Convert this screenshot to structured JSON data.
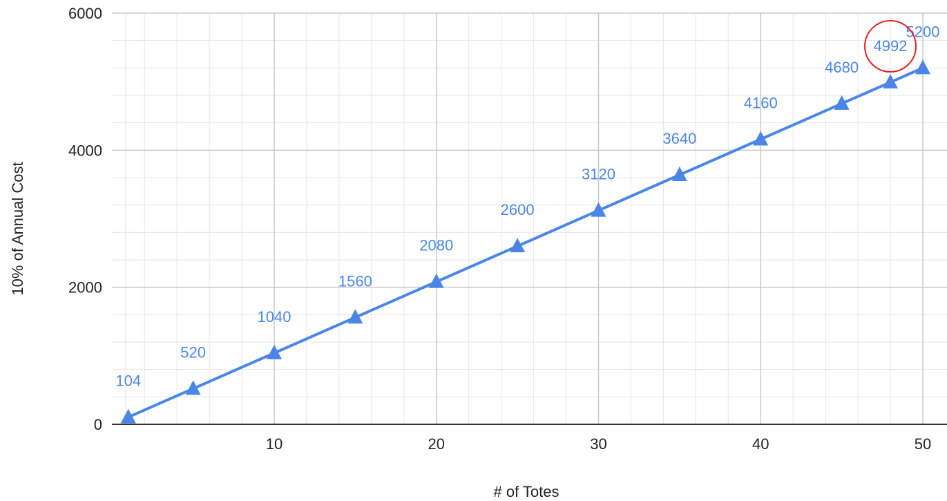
{
  "chart_data": {
    "type": "line",
    "title": "",
    "xlabel": "# of Totes",
    "ylabel": "10% of Annual Cost",
    "xlim": [
      0,
      50
    ],
    "ylim": [
      0,
      6000
    ],
    "x_ticks": [
      "10",
      "20",
      "30",
      "40",
      "50"
    ],
    "y_ticks": [
      "0",
      "2000",
      "4000",
      "6000"
    ],
    "grid": true,
    "legend": "none",
    "marker": "triangle",
    "colors": {
      "series": "#4a86e8",
      "data_label": "#4a86e8",
      "grid_major": "#c8c8c8",
      "grid_minor": "#e6e6e6",
      "axis": "#333333",
      "highlight_circle": "#e02020"
    },
    "x": [
      1,
      5,
      10,
      15,
      20,
      25,
      30,
      35,
      40,
      45,
      48,
      50
    ],
    "series": [
      {
        "values": [
          104,
          520,
          1040,
          1560,
          2080,
          2600,
          3120,
          3640,
          4160,
          4680,
          4992,
          5200
        ],
        "data_labels": [
          "104",
          "520",
          "1040",
          "1560",
          "2080",
          "2600",
          "3120",
          "3640",
          "4160",
          "4680",
          "4992",
          "5200"
        ]
      }
    ],
    "annotations": [
      {
        "type": "circle",
        "target_label": "4992"
      }
    ]
  }
}
